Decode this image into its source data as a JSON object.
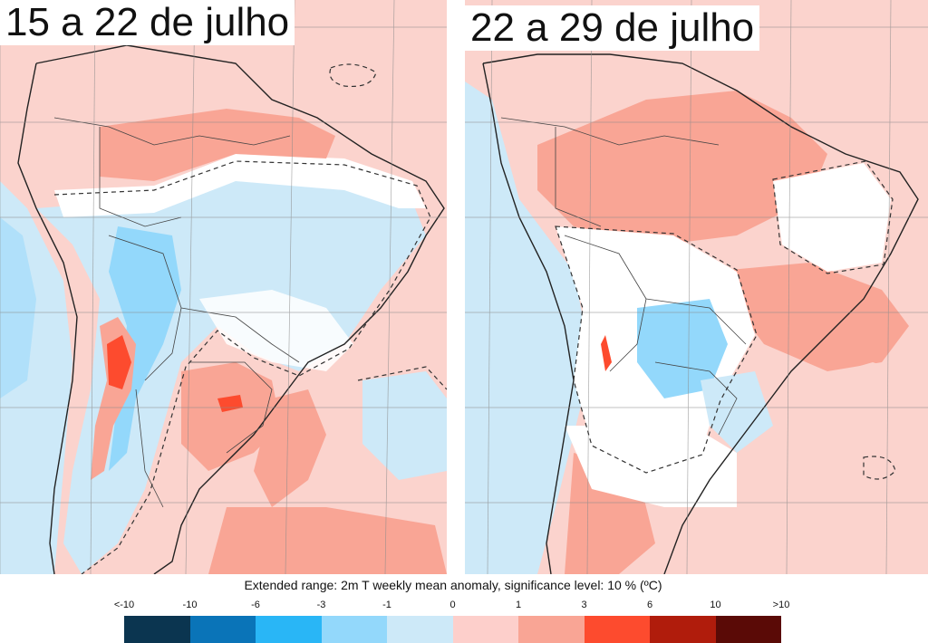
{
  "panels": [
    {
      "title": "15 a 22 de julho"
    },
    {
      "title": "22 a 29 de julho"
    }
  ],
  "legend": {
    "title": "Extended range: 2m T weekly mean anomaly, significance level: 10 % (ºC)",
    "ticks": [
      "<-10",
      "-10",
      "-6",
      "-3",
      "-1",
      "0",
      "1",
      "3",
      "6",
      "10",
      ">10"
    ],
    "colors": [
      "#0b3550",
      "#0a74b8",
      "#29b6f6",
      "#93d8fb",
      "#cde9f8",
      "#fdcfcb",
      "#f9a595",
      "#fd4b2e",
      "#b01c0c",
      "#5a0a06"
    ]
  }
}
